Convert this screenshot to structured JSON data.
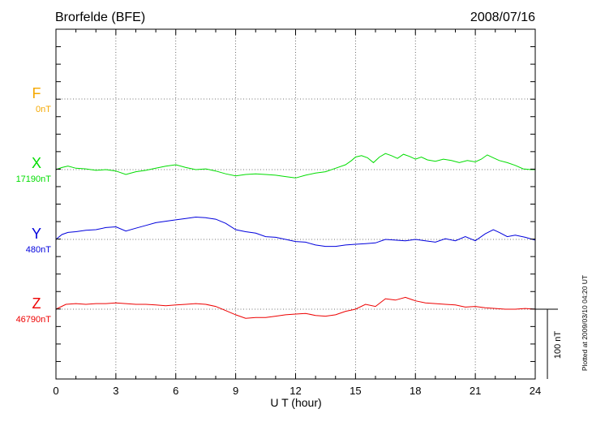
{
  "header": {
    "station": "Brorfelde (BFE)",
    "date": "2008/07/16"
  },
  "footer": {
    "plotted_note": "Plotted at 2009/03/10 04:20 UT"
  },
  "chart_data": {
    "type": "line",
    "xlabel": "U T (hour)",
    "xlim": [
      0,
      24
    ],
    "x_ticks": [
      "0",
      "3",
      "6",
      "9",
      "12",
      "15",
      "18",
      "21",
      "24"
    ],
    "scale_bar_label": "100 nT",
    "scale_bar_nT": 100,
    "panel_span_nT": 100,
    "grid": true,
    "series": [
      {
        "name": "F",
        "baseline_label": "0nT",
        "color": "#f5a800",
        "values": []
      },
      {
        "name": "X",
        "baseline_label": "17190nT",
        "color": "#00dd00",
        "values": [
          [
            0,
            17190
          ],
          [
            0.3,
            17193
          ],
          [
            0.6,
            17195
          ],
          [
            1.0,
            17192
          ],
          [
            1.5,
            17191
          ],
          [
            2.0,
            17189
          ],
          [
            2.5,
            17190
          ],
          [
            3.0,
            17188
          ],
          [
            3.5,
            17183
          ],
          [
            4.0,
            17187
          ],
          [
            4.5,
            17189
          ],
          [
            5.0,
            17192
          ],
          [
            5.5,
            17195
          ],
          [
            6.0,
            17197
          ],
          [
            6.5,
            17193
          ],
          [
            7.0,
            17190
          ],
          [
            7.5,
            17191
          ],
          [
            8.0,
            17188
          ],
          [
            8.5,
            17184
          ],
          [
            9.0,
            17181
          ],
          [
            9.5,
            17183
          ],
          [
            10.0,
            17184
          ],
          [
            10.5,
            17183
          ],
          [
            11.0,
            17182
          ],
          [
            11.5,
            17180
          ],
          [
            12.0,
            17178
          ],
          [
            12.5,
            17182
          ],
          [
            13.0,
            17185
          ],
          [
            13.5,
            17187
          ],
          [
            14.0,
            17192
          ],
          [
            14.5,
            17197
          ],
          [
            14.8,
            17203
          ],
          [
            15.0,
            17208
          ],
          [
            15.3,
            17210
          ],
          [
            15.6,
            17207
          ],
          [
            15.9,
            17200
          ],
          [
            16.2,
            17208
          ],
          [
            16.5,
            17213
          ],
          [
            16.8,
            17210
          ],
          [
            17.1,
            17206
          ],
          [
            17.4,
            17212
          ],
          [
            17.7,
            17209
          ],
          [
            18.0,
            17205
          ],
          [
            18.3,
            17208
          ],
          [
            18.6,
            17204
          ],
          [
            19.0,
            17202
          ],
          [
            19.4,
            17205
          ],
          [
            19.8,
            17203
          ],
          [
            20.2,
            17200
          ],
          [
            20.6,
            17203
          ],
          [
            21.0,
            17201
          ],
          [
            21.3,
            17205
          ],
          [
            21.6,
            17211
          ],
          [
            21.9,
            17207
          ],
          [
            22.2,
            17203
          ],
          [
            22.6,
            17200
          ],
          [
            23.0,
            17196
          ],
          [
            23.4,
            17191
          ],
          [
            23.8,
            17190
          ],
          [
            24.0,
            17190
          ]
        ]
      },
      {
        "name": "Y",
        "baseline_label": "480nT",
        "color": "#0000dd",
        "values": [
          [
            0,
            480
          ],
          [
            0.3,
            487
          ],
          [
            0.6,
            490
          ],
          [
            1.0,
            491
          ],
          [
            1.5,
            493
          ],
          [
            2.0,
            494
          ],
          [
            2.5,
            497
          ],
          [
            3.0,
            498
          ],
          [
            3.5,
            492
          ],
          [
            4.0,
            496
          ],
          [
            4.5,
            500
          ],
          [
            5.0,
            504
          ],
          [
            5.5,
            506
          ],
          [
            6.0,
            508
          ],
          [
            6.5,
            510
          ],
          [
            7.0,
            512
          ],
          [
            7.5,
            511
          ],
          [
            8.0,
            509
          ],
          [
            8.5,
            503
          ],
          [
            9.0,
            494
          ],
          [
            9.5,
            491
          ],
          [
            10.0,
            489
          ],
          [
            10.5,
            484
          ],
          [
            11.0,
            483
          ],
          [
            11.5,
            480
          ],
          [
            12.0,
            477
          ],
          [
            12.5,
            476
          ],
          [
            13.0,
            472
          ],
          [
            13.5,
            470
          ],
          [
            14.0,
            470
          ],
          [
            14.5,
            472
          ],
          [
            15.0,
            473
          ],
          [
            15.5,
            474
          ],
          [
            16.0,
            475
          ],
          [
            16.5,
            480
          ],
          [
            17.0,
            479
          ],
          [
            17.5,
            478
          ],
          [
            18.0,
            480
          ],
          [
            18.5,
            478
          ],
          [
            19.0,
            476
          ],
          [
            19.5,
            481
          ],
          [
            20.0,
            478
          ],
          [
            20.5,
            484
          ],
          [
            21.0,
            478
          ],
          [
            21.5,
            488
          ],
          [
            21.9,
            494
          ],
          [
            22.2,
            490
          ],
          [
            22.6,
            484
          ],
          [
            23.0,
            486
          ],
          [
            23.5,
            483
          ],
          [
            24.0,
            479
          ]
        ]
      },
      {
        "name": "Z",
        "baseline_label": "46790nT",
        "color": "#ee0000",
        "values": [
          [
            0,
            46790
          ],
          [
            0.5,
            46797
          ],
          [
            1.0,
            46798
          ],
          [
            1.5,
            46797
          ],
          [
            2.0,
            46798
          ],
          [
            2.5,
            46798
          ],
          [
            3.0,
            46799
          ],
          [
            3.5,
            46798
          ],
          [
            4.0,
            46797
          ],
          [
            4.5,
            46797
          ],
          [
            5.0,
            46796
          ],
          [
            5.5,
            46795
          ],
          [
            6.0,
            46796
          ],
          [
            6.5,
            46797
          ],
          [
            7.0,
            46798
          ],
          [
            7.5,
            46797
          ],
          [
            8.0,
            46794
          ],
          [
            8.5,
            46788
          ],
          [
            9.0,
            46782
          ],
          [
            9.5,
            46777
          ],
          [
            10.0,
            46778
          ],
          [
            10.5,
            46778
          ],
          [
            11.0,
            46780
          ],
          [
            11.5,
            46782
          ],
          [
            12.0,
            46783
          ],
          [
            12.5,
            46784
          ],
          [
            13.0,
            46781
          ],
          [
            13.5,
            46780
          ],
          [
            14.0,
            46782
          ],
          [
            14.5,
            46787
          ],
          [
            15.0,
            46790
          ],
          [
            15.5,
            46797
          ],
          [
            16.0,
            46794
          ],
          [
            16.5,
            46805
          ],
          [
            17.0,
            46803
          ],
          [
            17.5,
            46807
          ],
          [
            18.0,
            46802
          ],
          [
            18.5,
            46799
          ],
          [
            19.0,
            46798
          ],
          [
            19.5,
            46797
          ],
          [
            20.0,
            46796
          ],
          [
            20.5,
            46793
          ],
          [
            21.0,
            46794
          ],
          [
            21.5,
            46792
          ],
          [
            22.0,
            46791
          ],
          [
            22.5,
            46790
          ],
          [
            23.0,
            46790
          ],
          [
            23.5,
            46791
          ],
          [
            24.0,
            46790
          ]
        ]
      }
    ]
  }
}
